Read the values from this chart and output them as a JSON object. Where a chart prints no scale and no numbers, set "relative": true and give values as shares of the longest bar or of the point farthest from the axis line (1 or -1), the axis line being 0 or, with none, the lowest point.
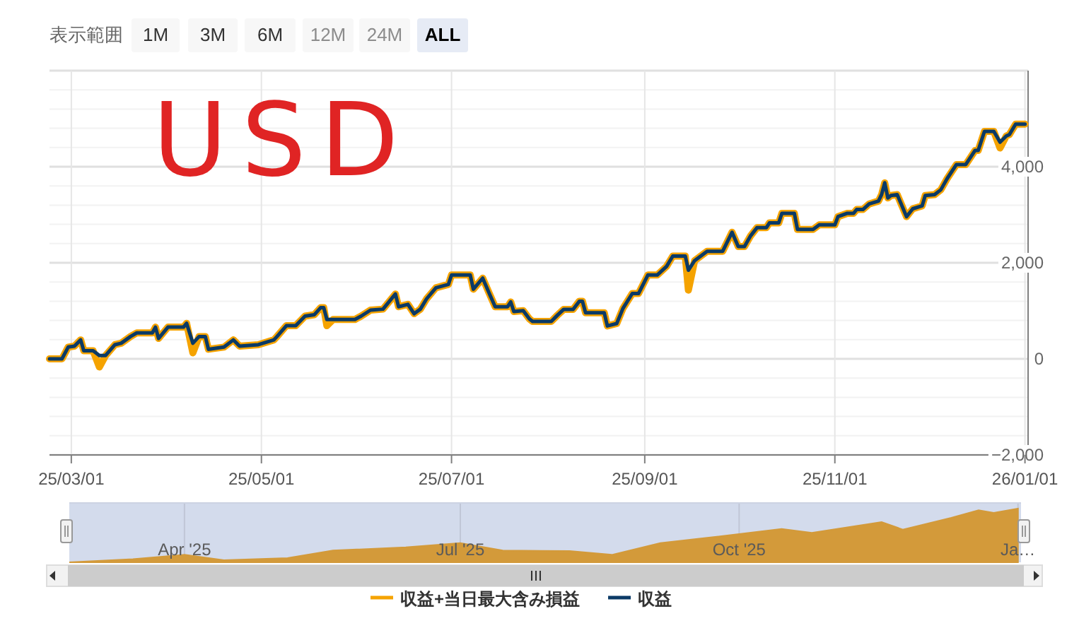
{
  "chart_data": [
    {
      "type": "line",
      "annotations": [
        "表示範囲",
        "1M",
        "3M",
        "6M",
        "12M",
        "24M",
        "ALL",
        "USD"
      ],
      "x": [
        "2025-02-22",
        "2025-02-26",
        "2025-02-28",
        "2025-03-02",
        "2025-03-04",
        "2025-03-05",
        "2025-03-08",
        "2025-03-10",
        "2025-03-12",
        "2025-03-15",
        "2025-03-17",
        "2025-03-20",
        "2025-03-22",
        "2025-03-27",
        "2025-03-28",
        "2025-03-29",
        "2025-04-01",
        "2025-04-06",
        "2025-04-07",
        "2025-04-09",
        "2025-04-11",
        "2025-04-13",
        "2025-04-14",
        "2025-04-19",
        "2025-04-22",
        "2025-04-24",
        "2025-04-30",
        "2025-05-05",
        "2025-05-06",
        "2025-05-09",
        "2025-05-12",
        "2025-05-15",
        "2025-05-18",
        "2025-05-20",
        "2025-05-21",
        "2025-05-22",
        "2025-05-24",
        "2025-05-31",
        "2025-06-02",
        "2025-06-05",
        "2025-06-09",
        "2025-06-13",
        "2025-06-14",
        "2025-06-17",
        "2025-06-19",
        "2025-06-21",
        "2025-06-23",
        "2025-06-26",
        "2025-06-30",
        "2025-07-01",
        "2025-07-07",
        "2025-07-08",
        "2025-07-11",
        "2025-07-13",
        "2025-07-15",
        "2025-07-19",
        "2025-07-20",
        "2025-07-21",
        "2025-07-24",
        "2025-07-26",
        "2025-07-27",
        "2025-08-02",
        "2025-08-04",
        "2025-08-06",
        "2025-08-09",
        "2025-08-11",
        "2025-08-12",
        "2025-08-13",
        "2025-08-19",
        "2025-08-20",
        "2025-08-23",
        "2025-08-25",
        "2025-08-28",
        "2025-08-30",
        "2025-09-02",
        "2025-09-05",
        "2025-09-08",
        "2025-09-10",
        "2025-09-14",
        "2025-09-15",
        "2025-09-17",
        "2025-09-21",
        "2025-09-26",
        "2025-09-29",
        "2025-10-01",
        "2025-10-03",
        "2025-10-05",
        "2025-10-07",
        "2025-10-10",
        "2025-10-11",
        "2025-10-14",
        "2025-10-15",
        "2025-10-19",
        "2025-10-20",
        "2025-10-25",
        "2025-10-27",
        "2025-11-01",
        "2025-11-02",
        "2025-11-05",
        "2025-11-07",
        "2025-11-08",
        "2025-11-10",
        "2025-11-12",
        "2025-11-15",
        "2025-11-16",
        "2025-11-17",
        "2025-11-18",
        "2025-11-19",
        "2025-11-21",
        "2025-11-24",
        "2025-11-26",
        "2025-11-29",
        "2025-11-30",
        "2025-12-03",
        "2025-12-05",
        "2025-12-07",
        "2025-12-10",
        "2025-12-13",
        "2025-12-16",
        "2025-12-17",
        "2025-12-19",
        "2025-12-22",
        "2025-12-24",
        "2025-12-26",
        "2025-12-27",
        "2025-12-29",
        "2026-01-01"
      ],
      "series": [
        {
          "name": "収益+当日最大含み損益",
          "color": "#f5a300",
          "values": [
            0,
            0,
            245,
            265,
            395,
            170,
            170,
            -170,
            70,
            295,
            325,
            465,
            540,
            540,
            660,
            425,
            660,
            660,
            740,
            125,
            465,
            465,
            200,
            245,
            395,
            265,
            295,
            395,
            465,
            690,
            690,
            890,
            920,
            1065,
            1065,
            690,
            820,
            820,
            890,
            1015,
            1035,
            1350,
            1085,
            1135,
            940,
            1035,
            1250,
            1480,
            1550,
            1745,
            1745,
            1450,
            1680,
            1380,
            1085,
            1085,
            1185,
            985,
            1005,
            830,
            780,
            780,
            910,
            1030,
            1030,
            1200,
            1200,
            960,
            960,
            685,
            735,
            1050,
            1360,
            1360,
            1745,
            1745,
            1925,
            2140,
            2140,
            1430,
            2045,
            2240,
            2240,
            2635,
            2340,
            2340,
            2565,
            2730,
            2730,
            2830,
            2830,
            3030,
            3030,
            2695,
            2695,
            2790,
            2790,
            2960,
            3030,
            3030,
            3110,
            3110,
            3225,
            3285,
            3420,
            3665,
            3350,
            3400,
            3420,
            2960,
            3125,
            3185,
            3400,
            3420,
            3520,
            3750,
            4045,
            4045,
            4340,
            4340,
            4735,
            4735,
            4390,
            4640,
            4670,
            4885,
            4885
          ]
        },
        {
          "name": "収益",
          "color": "#0b3a66",
          "values": [
            0,
            0,
            245,
            265,
            395,
            170,
            170,
            70,
            70,
            295,
            325,
            465,
            540,
            540,
            660,
            425,
            660,
            660,
            740,
            325,
            465,
            465,
            200,
            245,
            395,
            265,
            295,
            395,
            465,
            690,
            690,
            890,
            920,
            1065,
            1065,
            820,
            820,
            820,
            890,
            1015,
            1035,
            1350,
            1085,
            1135,
            940,
            1035,
            1250,
            1480,
            1550,
            1745,
            1745,
            1450,
            1680,
            1380,
            1085,
            1085,
            1185,
            985,
            1005,
            830,
            780,
            780,
            910,
            1030,
            1030,
            1200,
            1200,
            960,
            960,
            685,
            735,
            1050,
            1360,
            1360,
            1745,
            1745,
            1925,
            2140,
            2140,
            1845,
            2045,
            2240,
            2240,
            2635,
            2340,
            2340,
            2565,
            2730,
            2730,
            2830,
            2830,
            3030,
            3030,
            2695,
            2695,
            2790,
            2790,
            2960,
            3030,
            3030,
            3110,
            3110,
            3225,
            3285,
            3420,
            3665,
            3350,
            3400,
            3420,
            2960,
            3125,
            3185,
            3400,
            3420,
            3520,
            3750,
            4045,
            4045,
            4340,
            4340,
            4735,
            4735,
            4510,
            4640,
            4670,
            4885,
            4885
          ]
        }
      ],
      "xlim": [
        "2025-02-22",
        "2026-01-02"
      ],
      "xticks": [
        {
          "value": "2025-03-01",
          "label": "25/03/01"
        },
        {
          "value": "2025-05-01",
          "label": "25/05/01"
        },
        {
          "value": "2025-07-01",
          "label": "25/07/01"
        },
        {
          "value": "2025-09-01",
          "label": "25/09/01"
        },
        {
          "value": "2025-11-01",
          "label": "25/11/01"
        },
        {
          "value": "2026-01-01",
          "label": "26/01/01"
        }
      ],
      "ylim": [
        -2000,
        6000
      ],
      "yticks": [
        {
          "value": -2000,
          "label": "−2,000"
        },
        {
          "value": -1600,
          "label": null
        },
        {
          "value": -1200,
          "label": null
        },
        {
          "value": -800,
          "label": null
        },
        {
          "value": -400,
          "label": null
        },
        0,
        {
          "value": 400,
          "label": null
        },
        {
          "value": 800,
          "label": null
        },
        {
          "value": 1200,
          "label": null
        },
        {
          "value": 1600,
          "label": null
        },
        {
          "value": 2000,
          "label": "2,000"
        },
        {
          "value": 2400,
          "label": null
        },
        {
          "value": 2800,
          "label": null
        },
        {
          "value": 3200,
          "label": null
        },
        {
          "value": 3600,
          "label": null
        },
        {
          "value": 4000,
          "label": "4,000"
        },
        {
          "value": 4400,
          "label": null
        },
        {
          "value": 4800,
          "label": null
        },
        {
          "value": 5200,
          "label": null
        },
        {
          "value": 5600,
          "label": null
        },
        {
          "value": 6000,
          "label": null
        }
      ],
      "grid": true,
      "legend": "bottom",
      "line_style": "solid",
      "marker": "none"
    },
    {
      "type": "area",
      "relative": true,
      "color": "#d39a3a",
      "grid": "x",
      "x": [
        "2025-02-22",
        "2025-03-15",
        "2025-04-01",
        "2025-04-14",
        "2025-05-05",
        "2025-05-20",
        "2025-06-13",
        "2025-07-01",
        "2025-07-15",
        "2025-08-06",
        "2025-08-20",
        "2025-09-05",
        "2025-09-21",
        "2025-10-15",
        "2025-10-25",
        "2025-11-17",
        "2025-11-24",
        "2025-12-10",
        "2025-12-19",
        "2025-12-24",
        "2026-01-01"
      ],
      "values": [
        0,
        0.06,
        0.14,
        0.04,
        0.08,
        0.22,
        0.28,
        0.36,
        0.22,
        0.21,
        0.14,
        0.36,
        0.46,
        0.62,
        0.55,
        0.75,
        0.61,
        0.83,
        0.97,
        0.92,
        1
      ],
      "xlim": [
        "2025-02-22",
        "2026-01-02"
      ],
      "xticks": [
        {
          "value": "2025-04-01",
          "label": "Apr '25"
        },
        {
          "value": "2025-07-01",
          "label": "Jul '25"
        },
        {
          "value": "2025-10-01",
          "label": "Oct '25"
        },
        {
          "value": "2026-01-01",
          "label": "Ja…"
        }
      ]
    }
  ]
}
